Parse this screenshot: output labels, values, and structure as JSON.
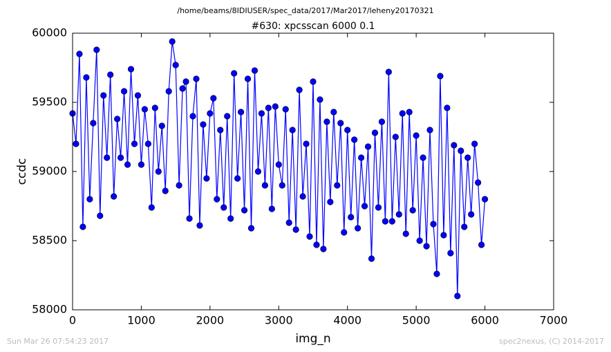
{
  "chart_data": {
    "type": "line",
    "header": "/home/beams/8IDIUSER/spec_data/2017/Mar2017/leheny20170321",
    "title": "#630: xpcsscan 6000 0.1",
    "x_label": "img_n",
    "y_label": "ccdc",
    "footer_left": "Sun Mar 26 07:54:23 2017",
    "footer_right": "spec2nexus, (C) 2014-2017",
    "xlim": [
      0,
      7000
    ],
    "xticks": [
      0,
      1000,
      2000,
      3000,
      4000,
      5000,
      6000,
      7000
    ],
    "ylim": [
      58000,
      60000
    ],
    "yticks": [
      58000,
      58500,
      59000,
      59500,
      60000
    ],
    "x": [
      0,
      50,
      100,
      150,
      200,
      250,
      300,
      350,
      400,
      450,
      500,
      550,
      600,
      650,
      700,
      750,
      800,
      850,
      900,
      950,
      1000,
      1050,
      1100,
      1150,
      1200,
      1250,
      1300,
      1350,
      1400,
      1450,
      1500,
      1550,
      1600,
      1650,
      1700,
      1750,
      1800,
      1850,
      1900,
      1950,
      2000,
      2050,
      2100,
      2150,
      2200,
      2250,
      2300,
      2350,
      2400,
      2450,
      2500,
      2550,
      2600,
      2650,
      2700,
      2750,
      2800,
      2850,
      2900,
      2950,
      3000,
      3050,
      3100,
      3150,
      3200,
      3250,
      3300,
      3350,
      3400,
      3450,
      3500,
      3550,
      3600,
      3650,
      3700,
      3750,
      3800,
      3850,
      3900,
      3950,
      4000,
      4050,
      4100,
      4150,
      4200,
      4250,
      4300,
      4350,
      4400,
      4450,
      4500,
      4550,
      4600,
      4650,
      4700,
      4750,
      4800,
      4850,
      4900,
      4950,
      5000,
      5050,
      5100,
      5150,
      5200,
      5250,
      5300,
      5350,
      5400,
      5450,
      5500,
      5550,
      5600,
      5650,
      5700,
      5750,
      5800,
      5850,
      5900,
      5950,
      6000
    ],
    "series": [
      {
        "name": "ccdc",
        "color": "#0000ff",
        "values": [
          59420,
          59200,
          59850,
          58600,
          59680,
          58800,
          59350,
          59880,
          58680,
          59550,
          59100,
          59700,
          58820,
          59380,
          59100,
          59580,
          59050,
          59740,
          59200,
          59550,
          59050,
          59450,
          59200,
          58740,
          59460,
          59000,
          59330,
          58860,
          59580,
          59940,
          59770,
          58900,
          59600,
          59650,
          58660,
          59400,
          59670,
          58610,
          59340,
          58950,
          59420,
          59530,
          58800,
          59300,
          58740,
          59400,
          58660,
          59710,
          58950,
          59430,
          58720,
          59670,
          58590,
          59730,
          59000,
          59420,
          58900,
          59460,
          58730,
          59470,
          59050,
          58900,
          59450,
          58630,
          59300,
          58580,
          59590,
          58820,
          59200,
          58530,
          59650,
          58470,
          59520,
          58440,
          59360,
          58780,
          59430,
          58900,
          59350,
          58560,
          59300,
          58670,
          59230,
          58590,
          59100,
          58750,
          59180,
          58370,
          59280,
          58740,
          59360,
          58640,
          59720,
          58640,
          59250,
          58690,
          59420,
          58550,
          59430,
          58720,
          59260,
          58500,
          59100,
          58460,
          59300,
          58620,
          58260,
          59690,
          58540,
          59460,
          58410,
          59190,
          58100,
          59150,
          58600,
          59100,
          58690,
          59200,
          58920,
          58470,
          58800
        ]
      }
    ]
  }
}
